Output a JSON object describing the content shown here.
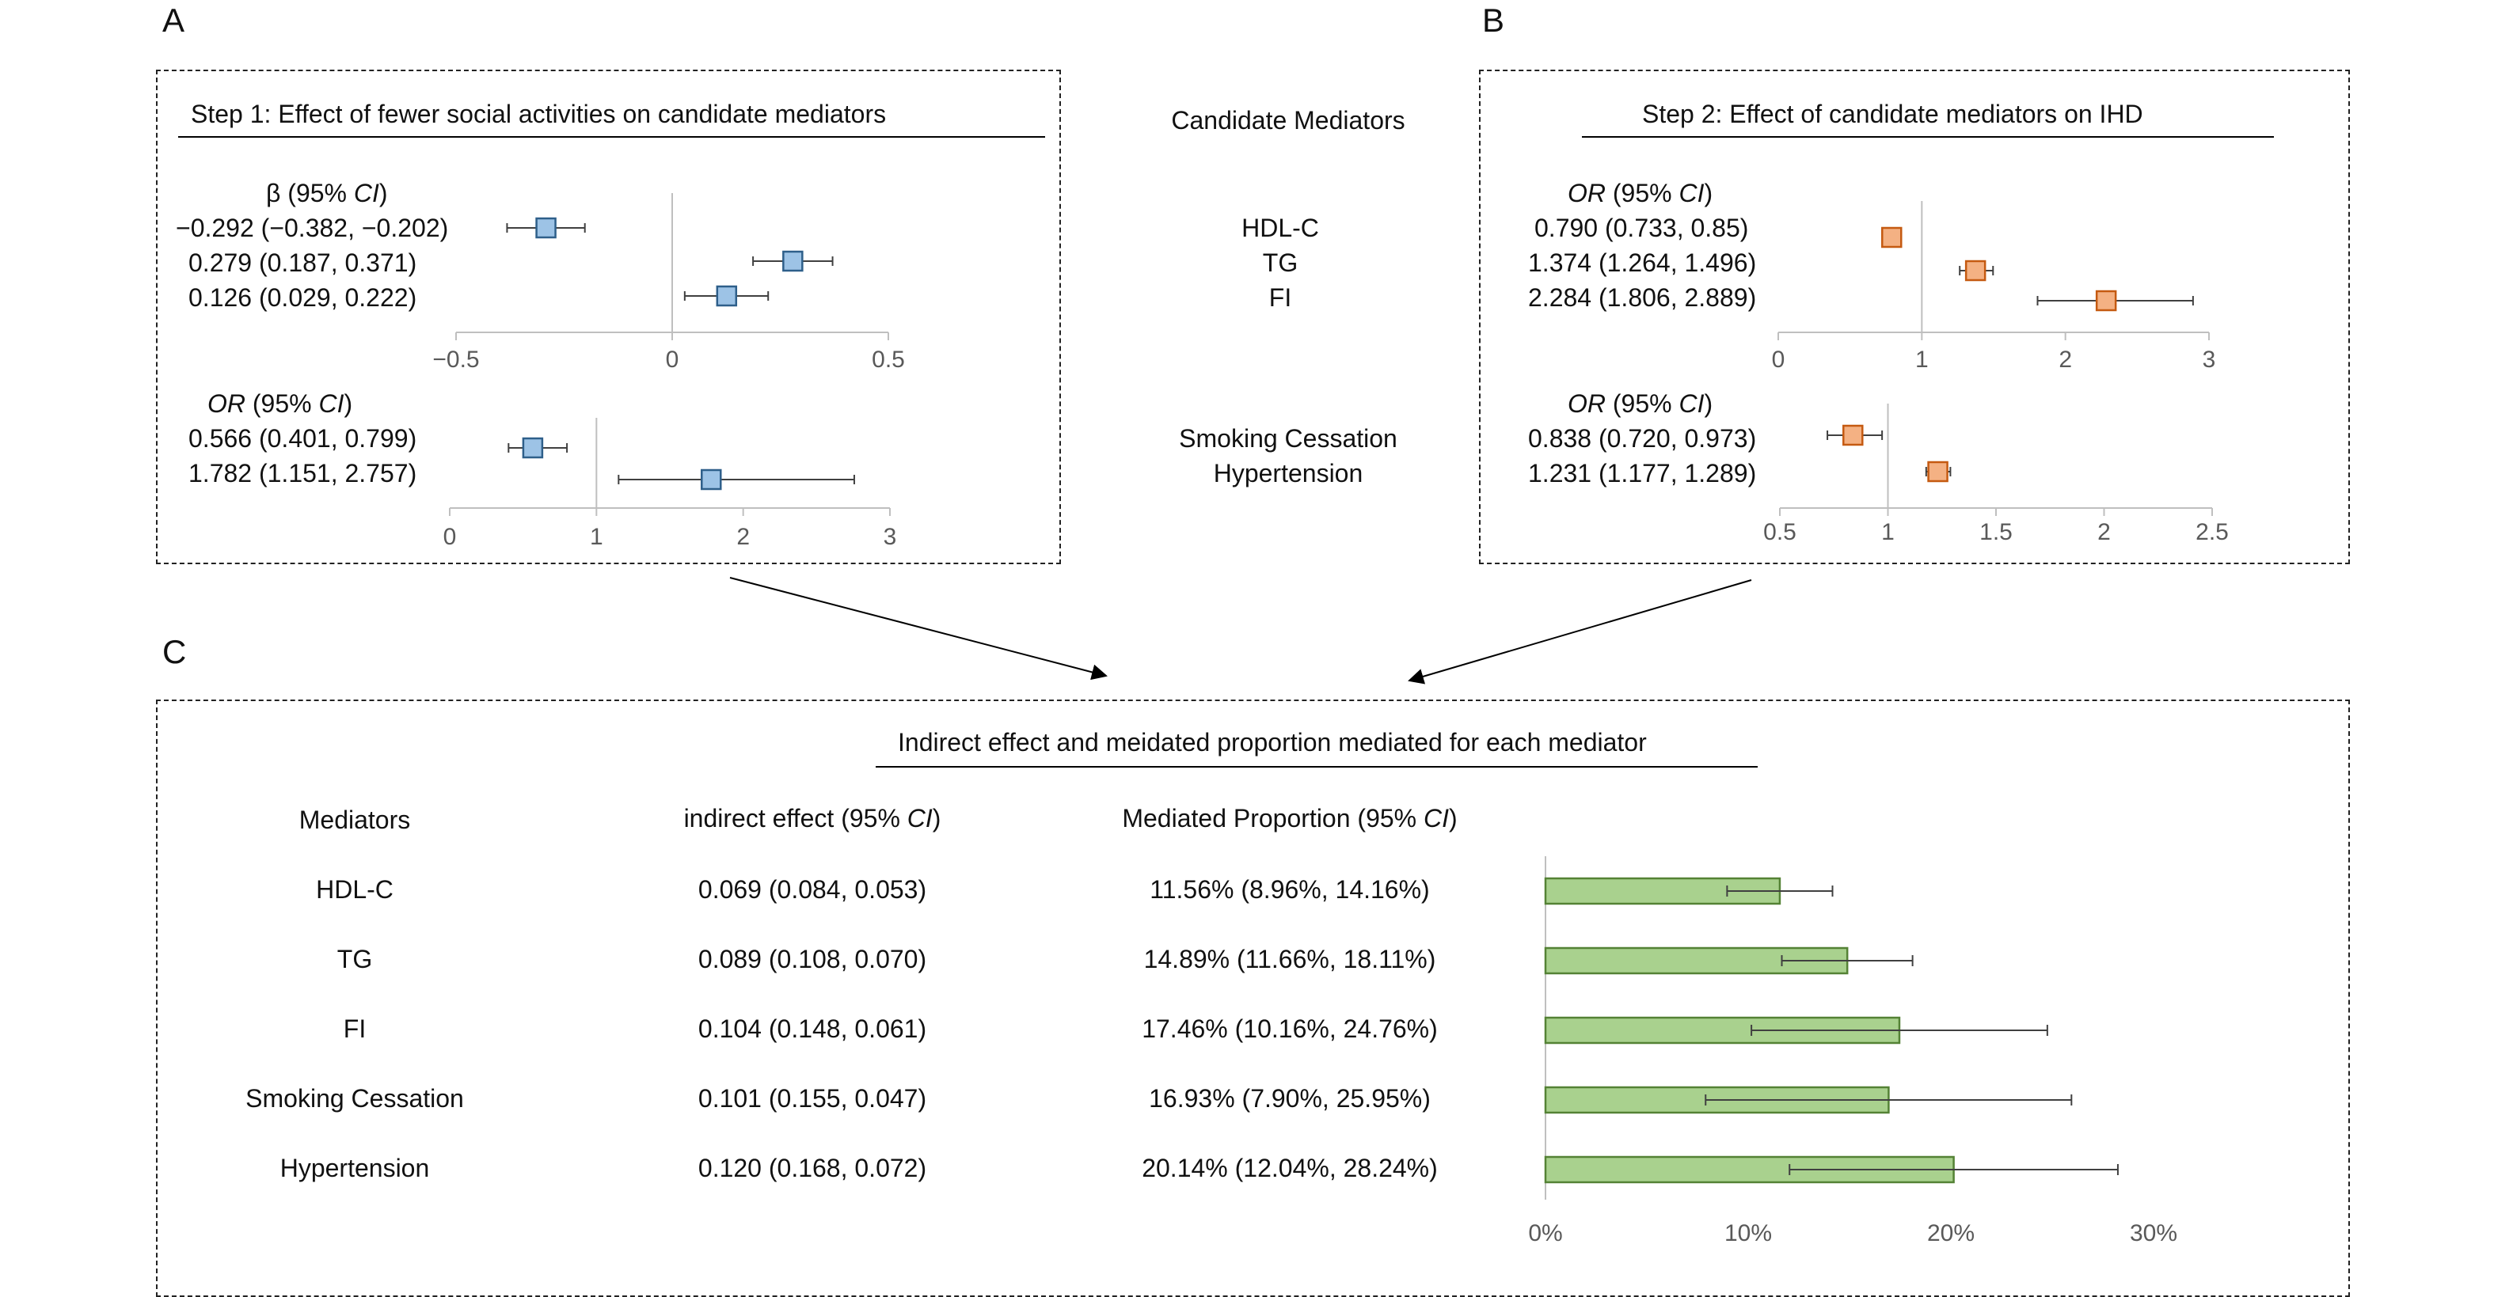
{
  "panels": {
    "a_label": "A",
    "b_label": "B",
    "c_label": "C"
  },
  "step1": {
    "title": "Step 1: Effect of fewer social activities on candidate mediators",
    "beta_header": "β (95% CI)",
    "beta_rows": [
      "−0.292 (−0.382, −0.202)",
      "0.279 (0.187, 0.371)",
      "0.126 (0.029, 0.222)"
    ],
    "or_header": "OR (95% CI)",
    "or_rows": [
      "0.566 (0.401, 0.799)",
      "1.782 (1.151, 2.757)"
    ]
  },
  "middle": {
    "title": "Candidate Mediators",
    "group1": [
      "HDL-C",
      "TG",
      "FI"
    ],
    "group2": [
      "Smoking Cessation",
      "Hypertension"
    ]
  },
  "step2": {
    "title": "Step 2: Effect of candidate mediators on IHD",
    "or_header1": "OR (95% CI)",
    "rows1": [
      "0.790 (0.733, 0.85)",
      "1.374 (1.264, 1.496)",
      "2.284 (1.806, 2.889)"
    ],
    "or_header2": "OR (95% CI)",
    "rows2": [
      "0.838 (0.720, 0.973)",
      "1.231 (1.177, 1.289)"
    ]
  },
  "panel_c": {
    "title": "Indirect effect and meidated proportion mediated for each mediator",
    "col_mediators": "Mediators",
    "col_indirect": "indirect effect (95% CI)",
    "col_proportion": "Mediated Proportion (95% CI)",
    "rows": [
      {
        "mediator": "HDL-C",
        "indirect": "0.069 (0.084, 0.053)",
        "proportion": "11.56% (8.96%, 14.16%)"
      },
      {
        "mediator": "TG",
        "indirect": "0.089 (0.108, 0.070)",
        "proportion": "14.89% (11.66%, 18.11%)"
      },
      {
        "mediator": "FI",
        "indirect": "0.104 (0.148, 0.061)",
        "proportion": "17.46% (10.16%, 24.76%)"
      },
      {
        "mediator": "Smoking Cessation",
        "indirect": "0.101 (0.155, 0.047)",
        "proportion": "16.93% (7.90%, 25.95%)"
      },
      {
        "mediator": "Hypertension",
        "indirect": "0.120 (0.168, 0.072)",
        "proportion": "20.14% (12.04%, 28.24%)"
      }
    ]
  },
  "colors": {
    "blue_fill": "#9DC3E6",
    "blue_stroke": "#2E5F8A",
    "orange_fill": "#F4B183",
    "orange_stroke": "#C55A11",
    "green_fill": "#A9D18E",
    "green_stroke": "#548235",
    "axis": "#BFBFBF",
    "tick_text": "#595959"
  },
  "chart_data": [
    {
      "id": "step1_beta",
      "type": "scatter",
      "subtype": "forest",
      "series": [
        {
          "values": [
            -0.292,
            0.279,
            0.126
          ],
          "lower": [
            -0.382,
            0.187,
            0.029
          ],
          "upper": [
            -0.202,
            0.371,
            0.222
          ]
        }
      ],
      "xlim": [
        -0.5,
        0.5
      ],
      "ticks": [
        -0.5,
        0,
        0.5
      ],
      "tick_labels": [
        "−0.5",
        "0",
        "0.5"
      ],
      "ref": 0
    },
    {
      "id": "step1_or",
      "type": "scatter",
      "subtype": "forest",
      "series": [
        {
          "values": [
            0.566,
            1.782
          ],
          "lower": [
            0.401,
            1.151
          ],
          "upper": [
            0.799,
            2.757
          ]
        }
      ],
      "xlim": [
        0,
        3
      ],
      "ticks": [
        0,
        1,
        2,
        3
      ],
      "tick_labels": [
        "0",
        "1",
        "2",
        "3"
      ],
      "ref": 1
    },
    {
      "id": "step2_top",
      "type": "scatter",
      "subtype": "forest",
      "series": [
        {
          "values": [
            0.79,
            1.374,
            2.284
          ],
          "lower": [
            0.733,
            1.264,
            1.806
          ],
          "upper": [
            0.85,
            1.496,
            2.889
          ]
        }
      ],
      "xlim": [
        0,
        3
      ],
      "ticks": [
        0,
        1,
        2,
        3
      ],
      "tick_labels": [
        "0",
        "1",
        "2",
        "3"
      ],
      "ref": 1
    },
    {
      "id": "step2_bottom",
      "type": "scatter",
      "subtype": "forest",
      "series": [
        {
          "values": [
            0.838,
            1.231
          ],
          "lower": [
            0.72,
            1.177
          ],
          "upper": [
            0.973,
            1.289
          ]
        }
      ],
      "xlim": [
        0.5,
        2.5
      ],
      "ticks": [
        0.5,
        1,
        1.5,
        2,
        2.5
      ],
      "tick_labels": [
        "0.5",
        "1",
        "1.5",
        "2",
        "2.5"
      ],
      "ref": 1
    },
    {
      "id": "mediated_proportion",
      "type": "bar",
      "orientation": "horizontal",
      "categories": [
        "HDL-C",
        "TG",
        "FI",
        "Smoking Cessation",
        "Hypertension"
      ],
      "series": [
        {
          "values": [
            11.56,
            14.89,
            17.46,
            16.93,
            20.14
          ],
          "lower": [
            8.96,
            11.66,
            10.16,
            7.9,
            12.04
          ],
          "upper": [
            14.16,
            18.11,
            24.76,
            25.95,
            28.24
          ]
        }
      ],
      "xlim": [
        0,
        30
      ],
      "ticks": [
        0,
        10,
        20,
        30
      ],
      "tick_labels": [
        "0%",
        "10%",
        "20%",
        "30%"
      ]
    }
  ]
}
